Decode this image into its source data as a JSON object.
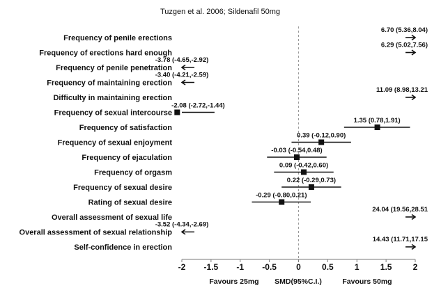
{
  "chart_data": {
    "type": "forest",
    "title": "Tuzgen et al. 2006; Sildenafil 50mg",
    "xlabel": "SMD(95%C.I.)",
    "left_note": "Favours 25mg",
    "right_note": "Favours 50mg",
    "xlim": [
      -2,
      2
    ],
    "xticks": [
      "-2",
      "-1.5",
      "-1",
      "-0.5",
      "0",
      "0.5",
      "1",
      "1.5",
      "2"
    ],
    "grid": false,
    "rows": [
      {
        "label": "Frequency of penile erections",
        "smd": 6.7,
        "lower": 5.36,
        "upper": 8.04,
        "ci_text": "6.70 (5.36,8.04)"
      },
      {
        "label": "Frequency of erections hard enough",
        "smd": 6.29,
        "lower": 5.02,
        "upper": 7.56,
        "ci_text": "6.29 (5.02,7.56)"
      },
      {
        "label": "Frequency of penile penetration",
        "smd": -3.78,
        "lower": -4.65,
        "upper": -2.92,
        "ci_text": "-3.78 (-4.65,-2.92)"
      },
      {
        "label": "Frequency of maintaining erection",
        "smd": -3.4,
        "lower": -4.21,
        "upper": -2.59,
        "ci_text": "-3.40 (-4.21,-2.59)"
      },
      {
        "label": "Difficulty in maintaining erection",
        "smd": 11.09,
        "lower": 8.98,
        "upper": 13.21,
        "ci_text": "11.09 (8.98,13.21"
      },
      {
        "label": "Frequency of sexual intercourse",
        "smd": -2.08,
        "lower": -2.72,
        "upper": -1.44,
        "ci_text": "-2.08 (-2.72,-1.44)"
      },
      {
        "label": "Frequency of satisfaction",
        "smd": 1.35,
        "lower": 0.78,
        "upper": 1.91,
        "ci_text": "1.35 (0.78,1.91)"
      },
      {
        "label": "Frequency of sexual enjoyment",
        "smd": 0.39,
        "lower": -0.12,
        "upper": 0.9,
        "ci_text": "0.39 (-0.12,0.90)"
      },
      {
        "label": "Frequency of ejaculation",
        "smd": -0.03,
        "lower": -0.54,
        "upper": 0.48,
        "ci_text": "-0.03 (-0.54,0.48)"
      },
      {
        "label": "Frequency of orgasm",
        "smd": 0.09,
        "lower": -0.42,
        "upper": 0.6,
        "ci_text": "0.09 (-0.42,0.60)"
      },
      {
        "label": "Frequency of sexual desire",
        "smd": 0.22,
        "lower": -0.29,
        "upper": 0.73,
        "ci_text": "0.22 (-0.29,0.73)"
      },
      {
        "label": "Rating of sexual desire",
        "smd": -0.29,
        "lower": -0.8,
        "upper": 0.21,
        "ci_text": "-0.29 (-0.80,0.21)"
      },
      {
        "label": "Overall assessment of sexual life",
        "smd": 24.04,
        "lower": 19.56,
        "upper": 28.51,
        "ci_text": "24.04 (19.56,28.51"
      },
      {
        "label": "Overall assessment of sexual relationship",
        "smd": -3.52,
        "lower": -4.34,
        "upper": -2.69,
        "ci_text": "-3.52 (-4.34,-2.69)"
      },
      {
        "label": "Self-confidence in erection",
        "smd": 14.43,
        "lower": 11.71,
        "upper": 17.15,
        "ci_text": "14.43 (11.71,17.15"
      }
    ]
  }
}
